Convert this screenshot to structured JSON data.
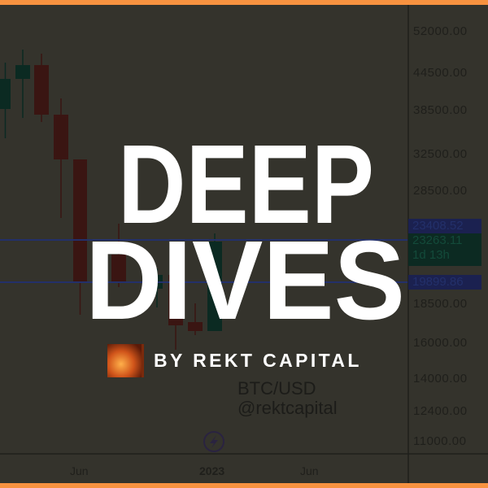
{
  "title": {
    "line1": "DEEP",
    "line2": "DIVES"
  },
  "byline": "BY REKT CAPITAL",
  "watermark": {
    "pair": "BTC/USD",
    "handle": "@rektcapital"
  },
  "price_axis": [
    "52000.00",
    "44500.00",
    "38500.00",
    "32500.00",
    "28500.00",
    "18500.00",
    "16000.00",
    "14000.00",
    "12400.00",
    "11000.00"
  ],
  "price_tags": {
    "upper_level": "23408.52",
    "current_price": "23263.11",
    "countdown": "1d 13h",
    "lower_level": "19899.86"
  },
  "time_axis": [
    "Jun",
    "2023",
    "Jun"
  ],
  "colors": {
    "border": "#f79240",
    "background": "#34332c",
    "text": "#ffffff",
    "level_line": "#23306a",
    "up_candle": "#0b2a22",
    "down_candle": "#3a1512"
  },
  "icons": {
    "logo": "rekt-capital-avatar",
    "bolt": "lightning-bolt-icon"
  }
}
